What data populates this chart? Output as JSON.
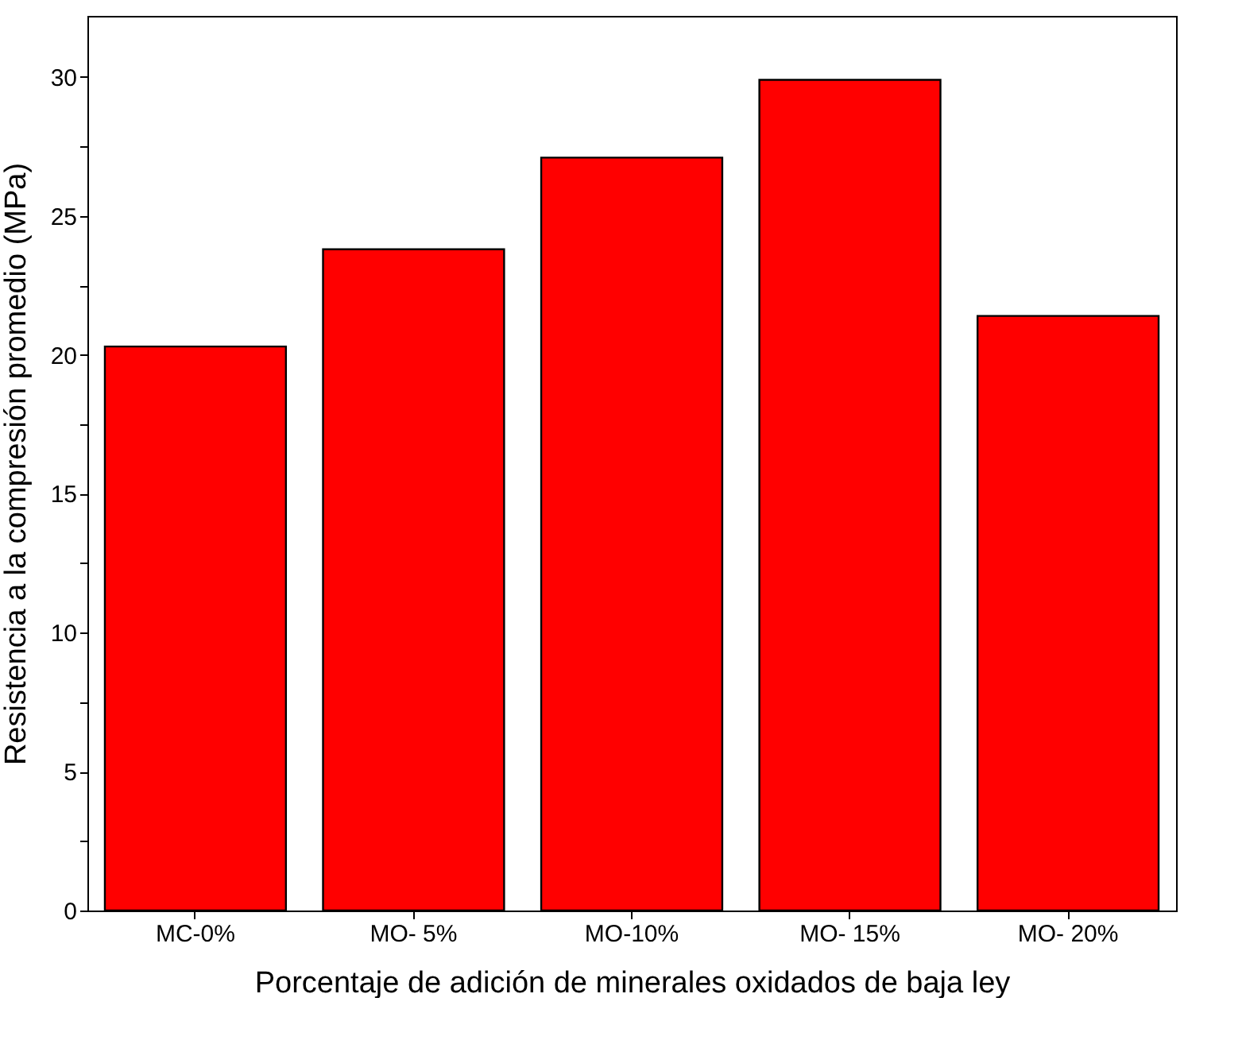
{
  "chart_data": {
    "type": "bar",
    "xlabel": "Porcentaje de adición de minerales oxidados de baja ley",
    "ylabel": "Resistencia a la compresión promedio (MPa)",
    "categories": [
      "MC-0%",
      "MO- 5%",
      "MO-10%",
      "MO- 15%",
      "MO- 20%"
    ],
    "values": [
      20.3,
      23.8,
      27.1,
      29.9,
      21.4
    ],
    "color": "#ff0000",
    "ylim": [
      0,
      32.2
    ],
    "yticks": [
      0,
      {
        "value": 2.5,
        "label": null
      },
      5,
      {
        "value": 7.5,
        "label": null
      },
      10,
      {
        "value": 12.5,
        "label": null
      },
      15,
      {
        "value": 17.5,
        "label": null
      },
      20,
      {
        "value": 22.5,
        "label": null
      },
      25,
      {
        "value": 27.5,
        "label": null
      },
      30
    ],
    "grid": false
  }
}
